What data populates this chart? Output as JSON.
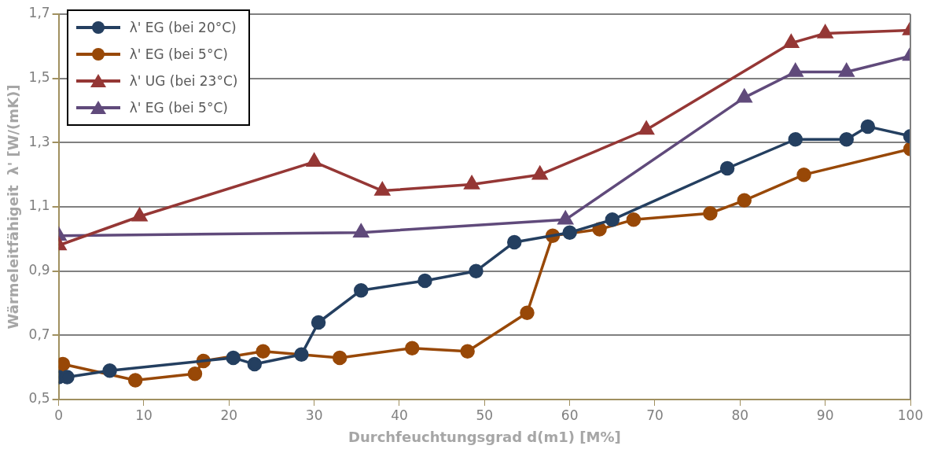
{
  "chart_data": {
    "type": "line",
    "xlabel": "Durchfeuchtungsgrad d(m1) [M%]",
    "ylabel": "Wärmeleitfähigeit  λ' [W/(mK)]",
    "xlim": [
      0,
      100
    ],
    "xticks": [
      0,
      10,
      20,
      30,
      40,
      50,
      60,
      70,
      80,
      90,
      100
    ],
    "ylim": [
      0.5,
      1.7
    ],
    "yticks": [
      {
        "value": 0.5,
        "label": "0,5"
      },
      {
        "value": 0.7,
        "label": "0,7"
      },
      {
        "value": 0.9,
        "label": "0,9"
      },
      {
        "value": 1.1,
        "label": "1,1"
      },
      {
        "value": 1.3,
        "label": "1,3"
      },
      {
        "value": 1.5,
        "label": "1,5"
      },
      {
        "value": 1.7,
        "label": "1,7"
      }
    ],
    "grid": "y",
    "legend": "top left",
    "line_style": "solid",
    "series": [
      {
        "name": "λ' EG (bei 20°C)",
        "color": "#243f60",
        "marker": "circle",
        "x": [
          0,
          1,
          6,
          20.5,
          23,
          28.5,
          30.5,
          35.5,
          43,
          49,
          53.5,
          60,
          65,
          78.5,
          86.5,
          92.5,
          95,
          100
        ],
        "values": [
          0.57,
          0.57,
          0.59,
          0.63,
          0.61,
          0.64,
          0.74,
          0.84,
          0.87,
          0.9,
          0.99,
          1.02,
          1.06,
          1.22,
          1.31,
          1.31,
          1.35,
          1.32
        ]
      },
      {
        "name": "λ' EG (bei 5°C)",
        "color": "#984807",
        "marker": "circle",
        "x": [
          0.5,
          9,
          16,
          17,
          24,
          33,
          41.5,
          48,
          55,
          58,
          63.5,
          67.5,
          76.5,
          80.5,
          87.5,
          100
        ],
        "values": [
          0.61,
          0.56,
          0.58,
          0.62,
          0.65,
          0.63,
          0.66,
          0.65,
          0.77,
          1.01,
          1.03,
          1.06,
          1.08,
          1.12,
          1.2,
          1.28
        ]
      },
      {
        "name": "λ' UG (bei 23°C)",
        "color": "#953735",
        "marker": "triangle",
        "x": [
          0,
          9.5,
          30,
          38,
          48.5,
          56.5,
          69,
          86,
          90,
          100
        ],
        "values": [
          0.98,
          1.07,
          1.24,
          1.15,
          1.17,
          1.2,
          1.34,
          1.61,
          1.64,
          1.65
        ]
      },
      {
        "name": "λ' EG (bei 5°C)",
        "color": "#604a7b",
        "marker": "triangle",
        "x": [
          0,
          35.5,
          59.5,
          80.5,
          86.5,
          92.5,
          100
        ],
        "values": [
          1.01,
          1.02,
          1.06,
          1.44,
          1.52,
          1.52,
          1.57
        ]
      }
    ]
  }
}
